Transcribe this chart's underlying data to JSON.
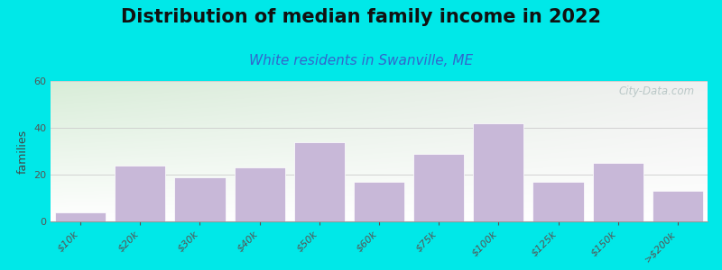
{
  "title": "Distribution of median family income in 2022",
  "subtitle": "White residents in Swanville, ME",
  "ylabel": "families",
  "categories": [
    "$10k",
    "$20k",
    "$30k",
    "$40k",
    "$50k",
    "$60k",
    "$75k",
    "$100k",
    "$125k",
    "$150k",
    ">$200k"
  ],
  "values": [
    4,
    24,
    19,
    23,
    34,
    17,
    29,
    42,
    17,
    25,
    13
  ],
  "bar_color": "#c8b8d8",
  "bar_edge_color": "#ffffff",
  "background_outer": "#00e8e8",
  "plot_bg_topleft": "#d8edd8",
  "plot_bg_right": "#f0f0f0",
  "plot_bg_bottom": "#ffffff",
  "title_fontsize": 15,
  "subtitle_fontsize": 11,
  "subtitle_color": "#3366cc",
  "ylabel_fontsize": 9,
  "tick_fontsize": 8,
  "ylim": [
    0,
    60
  ],
  "yticks": [
    0,
    20,
    40,
    60
  ],
  "watermark_text": "City-Data.com",
  "watermark_color": "#b0c0c0"
}
